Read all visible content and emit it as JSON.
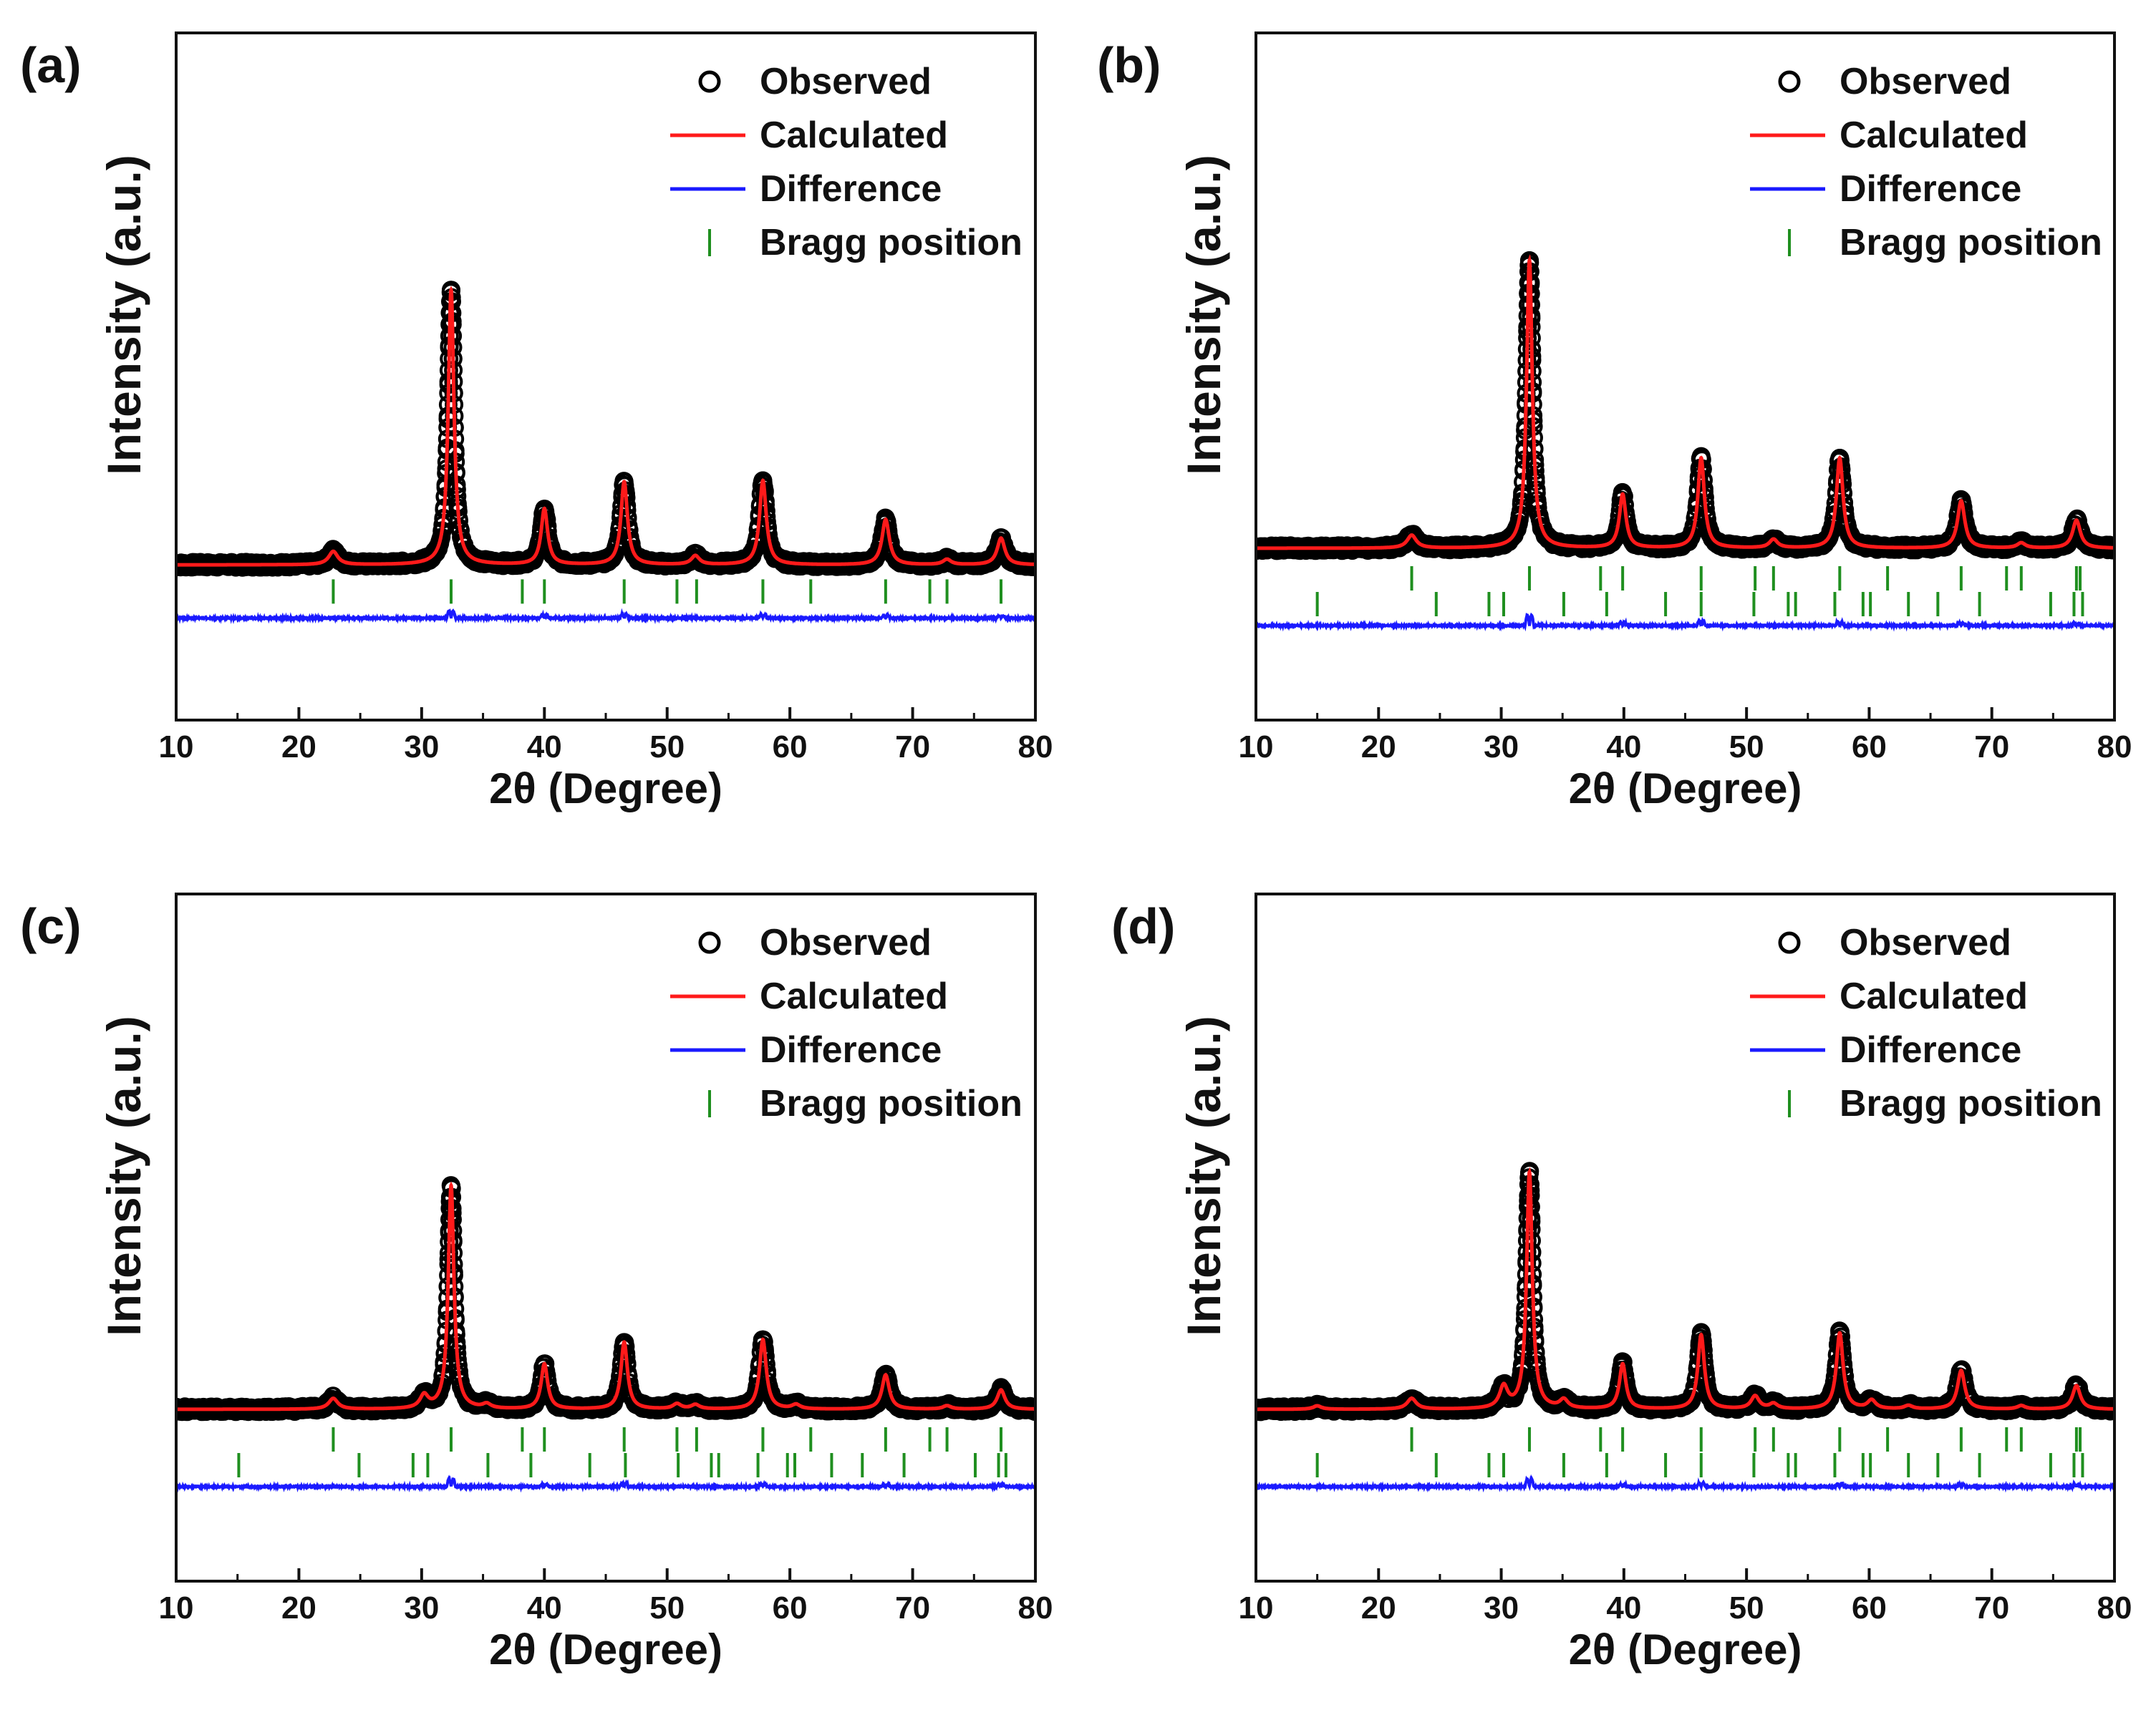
{
  "chart_data": [
    {
      "panel": "(a)",
      "type": "line",
      "xlabel": "2θ (Degree)",
      "ylabel": "Intensity (a.u.)",
      "xlim": [
        10,
        80
      ],
      "ylim": [
        -35,
        120
      ],
      "x_ticks": [
        10,
        20,
        30,
        40,
        50,
        60,
        70,
        80
      ],
      "legend": [
        "Observed",
        "Calculated",
        "Difference",
        "Bragg position"
      ],
      "legend_position": "top-right",
      "peaks": [
        {
          "x": 22.8,
          "height": 3,
          "width": 0.45
        },
        {
          "x": 32.4,
          "height": 62,
          "width": 0.28
        },
        {
          "x": 40.0,
          "height": 12.6,
          "width": 0.32
        },
        {
          "x": 46.5,
          "height": 18.7,
          "width": 0.32
        },
        {
          "x": 52.3,
          "height": 2,
          "width": 0.4
        },
        {
          "x": 57.8,
          "height": 19,
          "width": 0.33
        },
        {
          "x": 67.8,
          "height": 10.2,
          "width": 0.36
        },
        {
          "x": 72.8,
          "height": 1.2,
          "width": 0.4
        },
        {
          "x": 77.2,
          "height": 6,
          "width": 0.38
        }
      ],
      "diff_spikes": [
        {
          "x": 32.4,
          "amp": 1.6
        },
        {
          "x": 40.0,
          "amp": 0.7
        },
        {
          "x": 46.5,
          "amp": 0.9
        },
        {
          "x": 57.8,
          "amp": 0.8
        },
        {
          "x": 67.8,
          "amp": 0.6
        },
        {
          "x": 77.2,
          "amp": 0.5
        }
      ],
      "bragg_rows": [
        {
          "level": -6,
          "positions": [
            22.8,
            32.4,
            38.2,
            40.0,
            46.5,
            50.8,
            52.4,
            57.8,
            61.7,
            67.8,
            71.4,
            72.8,
            77.2
          ]
        }
      ],
      "baseline": 0,
      "diff_level": -12
    },
    {
      "panel": "(b)",
      "type": "line",
      "xlabel": "2θ (Degree)",
      "ylabel": "Intensity (a.u.)",
      "xlim": [
        10,
        80
      ],
      "ylim": [
        -40,
        120
      ],
      "x_ticks": [
        10,
        20,
        30,
        40,
        50,
        60,
        70,
        80
      ],
      "legend": [
        "Observed",
        "Calculated",
        "Difference",
        "Bragg position"
      ],
      "legend_position": "top-right",
      "peaks": [
        {
          "x": 22.7,
          "height": 3,
          "width": 0.45
        },
        {
          "x": 32.3,
          "height": 67,
          "width": 0.28
        },
        {
          "x": 39.9,
          "height": 12.5,
          "width": 0.32
        },
        {
          "x": 46.3,
          "height": 21,
          "width": 0.32
        },
        {
          "x": 52.2,
          "height": 2,
          "width": 0.4
        },
        {
          "x": 57.6,
          "height": 21,
          "width": 0.33
        },
        {
          "x": 67.5,
          "height": 11,
          "width": 0.36
        },
        {
          "x": 72.4,
          "height": 1.2,
          "width": 0.4
        },
        {
          "x": 76.9,
          "height": 6.5,
          "width": 0.38
        }
      ],
      "diff_spikes": [
        {
          "x": 32.3,
          "amp": 2.5
        },
        {
          "x": 39.9,
          "amp": 0.7
        },
        {
          "x": 46.3,
          "amp": 1.0
        },
        {
          "x": 57.6,
          "amp": 0.9
        },
        {
          "x": 67.5,
          "amp": 0.6
        },
        {
          "x": 76.9,
          "amp": 0.5
        }
      ],
      "bragg_rows": [
        {
          "level": -7,
          "positions": [
            22.7,
            32.3,
            38.1,
            39.9,
            46.3,
            50.7,
            52.2,
            57.6,
            61.5,
            67.5,
            71.2,
            72.4,
            76.9,
            77.2
          ]
        },
        {
          "level": -13,
          "positions": [
            15.0,
            24.7,
            29.0,
            30.2,
            35.1,
            38.6,
            43.4,
            46.3,
            50.6,
            53.4,
            54.0,
            57.2,
            59.5,
            60.1,
            63.2,
            65.6,
            69.0,
            74.8,
            76.7,
            77.4
          ]
        }
      ],
      "baseline": 0,
      "diff_level": -18
    },
    {
      "panel": "(c)",
      "type": "line",
      "xlabel": "2θ (Degree)",
      "ylabel": "Intensity (a.u.)",
      "xlim": [
        10,
        80
      ],
      "ylim": [
        -40,
        120
      ],
      "x_ticks": [
        10,
        20,
        30,
        40,
        50,
        60,
        70,
        80
      ],
      "legend": [
        "Observed",
        "Calculated",
        "Difference",
        "Bragg position"
      ],
      "legend_position": "top-right",
      "peaks": [
        {
          "x": 22.8,
          "height": 2.5,
          "width": 0.45
        },
        {
          "x": 30.2,
          "height": 3,
          "width": 0.4
        },
        {
          "x": 32.4,
          "height": 52,
          "width": 0.28
        },
        {
          "x": 35.3,
          "height": 1,
          "width": 0.4
        },
        {
          "x": 40.0,
          "height": 10.5,
          "width": 0.32
        },
        {
          "x": 46.5,
          "height": 15.6,
          "width": 0.32
        },
        {
          "x": 50.8,
          "height": 1.2,
          "width": 0.4
        },
        {
          "x": 52.3,
          "height": 1,
          "width": 0.4
        },
        {
          "x": 57.8,
          "height": 16.2,
          "width": 0.33
        },
        {
          "x": 60.5,
          "height": 1,
          "width": 0.4
        },
        {
          "x": 67.8,
          "height": 8,
          "width": 0.36
        },
        {
          "x": 72.8,
          "height": 0.8,
          "width": 0.4
        },
        {
          "x": 77.2,
          "height": 4.5,
          "width": 0.38
        }
      ],
      "diff_spikes": [
        {
          "x": 32.4,
          "amp": 1.8
        },
        {
          "x": 40.0,
          "amp": 0.6
        },
        {
          "x": 46.5,
          "amp": 0.8
        },
        {
          "x": 57.8,
          "amp": 0.7
        },
        {
          "x": 67.8,
          "amp": 0.5
        },
        {
          "x": 77.2,
          "amp": 0.5
        }
      ],
      "bragg_rows": [
        {
          "level": -7,
          "positions": [
            22.8,
            32.4,
            38.2,
            40.0,
            46.5,
            50.8,
            52.4,
            57.8,
            61.7,
            67.8,
            71.4,
            72.8,
            77.2
          ]
        },
        {
          "level": -13,
          "positions": [
            15.1,
            24.9,
            29.3,
            30.5,
            35.4,
            38.9,
            43.7,
            46.6,
            50.9,
            53.6,
            54.2,
            57.4,
            59.8,
            60.4,
            63.4,
            65.9,
            69.3,
            75.1,
            77.0,
            77.6
          ]
        }
      ],
      "baseline": 0,
      "diff_level": -18
    },
    {
      "panel": "(d)",
      "type": "line",
      "xlabel": "2θ (Degree)",
      "ylabel": "Intensity (a.u.)",
      "xlim": [
        10,
        80
      ],
      "ylim": [
        -40,
        120
      ],
      "x_ticks": [
        10,
        20,
        30,
        40,
        50,
        60,
        70,
        80
      ],
      "legend": [
        "Observed",
        "Calculated",
        "Difference",
        "Bragg position"
      ],
      "legend_position": "top-right",
      "peaks": [
        {
          "x": 15.0,
          "height": 0.8,
          "width": 0.4
        },
        {
          "x": 22.7,
          "height": 2.5,
          "width": 0.45
        },
        {
          "x": 30.2,
          "height": 5,
          "width": 0.4
        },
        {
          "x": 32.3,
          "height": 55,
          "width": 0.28
        },
        {
          "x": 35.1,
          "height": 2,
          "width": 0.4
        },
        {
          "x": 39.9,
          "height": 10.5,
          "width": 0.32
        },
        {
          "x": 46.3,
          "height": 17.3,
          "width": 0.32
        },
        {
          "x": 50.7,
          "height": 3,
          "width": 0.4
        },
        {
          "x": 52.2,
          "height": 1.2,
          "width": 0.4
        },
        {
          "x": 57.6,
          "height": 17.7,
          "width": 0.33
        },
        {
          "x": 60.2,
          "height": 2,
          "width": 0.4
        },
        {
          "x": 63.2,
          "height": 0.8,
          "width": 0.4
        },
        {
          "x": 67.5,
          "height": 9,
          "width": 0.36
        },
        {
          "x": 72.4,
          "height": 0.8,
          "width": 0.4
        },
        {
          "x": 76.9,
          "height": 5.5,
          "width": 0.38
        }
      ],
      "diff_spikes": [
        {
          "x": 32.3,
          "amp": 1.8
        },
        {
          "x": 39.9,
          "amp": 0.6
        },
        {
          "x": 46.3,
          "amp": 0.8
        },
        {
          "x": 57.6,
          "amp": 0.7
        },
        {
          "x": 67.5,
          "amp": 0.5
        },
        {
          "x": 76.9,
          "amp": 0.5
        }
      ],
      "bragg_rows": [
        {
          "level": -7,
          "positions": [
            22.7,
            32.3,
            38.1,
            39.9,
            46.3,
            50.7,
            52.2,
            57.6,
            61.5,
            67.5,
            71.2,
            72.4,
            76.9,
            77.2
          ]
        },
        {
          "level": -13,
          "positions": [
            15.0,
            24.7,
            29.0,
            30.2,
            35.1,
            38.6,
            43.4,
            46.3,
            50.6,
            53.4,
            54.0,
            57.2,
            59.5,
            60.1,
            63.2,
            65.6,
            69.0,
            74.8,
            76.7,
            77.4
          ]
        }
      ],
      "baseline": 0,
      "diff_level": -18
    }
  ],
  "colors": {
    "observed": "#000000",
    "calculated": "#ff1a1a",
    "difference": "#1a1aff",
    "bragg": "#1f8f1f",
    "axes": "#111111"
  }
}
